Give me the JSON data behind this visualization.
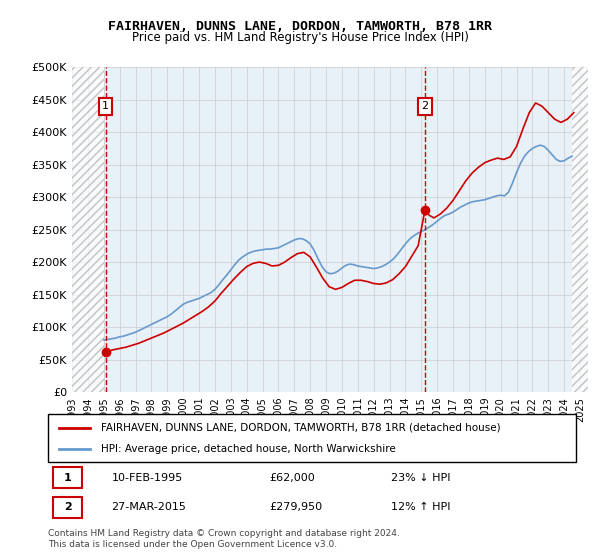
{
  "title": "FAIRHAVEN, DUNNS LANE, DORDON, TAMWORTH, B78 1RR",
  "subtitle": "Price paid vs. HM Land Registry's House Price Index (HPI)",
  "xlabel": "",
  "ylabel": "",
  "ylim": [
    0,
    500000
  ],
  "yticks": [
    0,
    50000,
    100000,
    150000,
    200000,
    250000,
    300000,
    350000,
    400000,
    450000,
    500000
  ],
  "ytick_labels": [
    "£0",
    "£50K",
    "£100K",
    "£150K",
    "£200K",
    "£250K",
    "£300K",
    "£350K",
    "£400K",
    "£450K",
    "£500K"
  ],
  "xlim_start": 1993.0,
  "xlim_end": 2025.5,
  "xtick_years": [
    1993,
    1994,
    1995,
    1996,
    1997,
    1998,
    1999,
    2000,
    2001,
    2002,
    2003,
    2004,
    2005,
    2006,
    2007,
    2008,
    2009,
    2010,
    2011,
    2012,
    2013,
    2014,
    2015,
    2016,
    2017,
    2018,
    2019,
    2020,
    2021,
    2022,
    2023,
    2024,
    2025
  ],
  "hpi_color": "#6699cc",
  "price_color": "#cc0000",
  "hatch_color": "#dddddd",
  "grid_color": "#cccccc",
  "bg_color": "#e8f0f8",
  "point1_x": 1995.11,
  "point1_y": 62000,
  "point2_x": 2015.23,
  "point2_y": 279950,
  "legend_line1": "FAIRHAVEN, DUNNS LANE, DORDON, TAMWORTH, B78 1RR (detached house)",
  "legend_line2": "HPI: Average price, detached house, North Warwickshire",
  "table_row1_num": "1",
  "table_row1_date": "10-FEB-1995",
  "table_row1_price": "£62,000",
  "table_row1_hpi": "23% ↓ HPI",
  "table_row2_num": "2",
  "table_row2_date": "27-MAR-2015",
  "table_row2_price": "£279,950",
  "table_row2_hpi": "12% ↑ HPI",
  "footnote": "Contains HM Land Registry data © Crown copyright and database right 2024.\nThis data is licensed under the Open Government Licence v3.0.",
  "hpi_data_x": [
    1995.0,
    1995.25,
    1995.5,
    1995.75,
    1996.0,
    1996.25,
    1996.5,
    1996.75,
    1997.0,
    1997.25,
    1997.5,
    1997.75,
    1998.0,
    1998.25,
    1998.5,
    1998.75,
    1999.0,
    1999.25,
    1999.5,
    1999.75,
    2000.0,
    2000.25,
    2000.5,
    2000.75,
    2001.0,
    2001.25,
    2001.5,
    2001.75,
    2002.0,
    2002.25,
    2002.5,
    2002.75,
    2003.0,
    2003.25,
    2003.5,
    2003.75,
    2004.0,
    2004.25,
    2004.5,
    2004.75,
    2005.0,
    2005.25,
    2005.5,
    2005.75,
    2006.0,
    2006.25,
    2006.5,
    2006.75,
    2007.0,
    2007.25,
    2007.5,
    2007.75,
    2008.0,
    2008.25,
    2008.5,
    2008.75,
    2009.0,
    2009.25,
    2009.5,
    2009.75,
    2010.0,
    2010.25,
    2010.5,
    2010.75,
    2011.0,
    2011.25,
    2011.5,
    2011.75,
    2012.0,
    2012.25,
    2012.5,
    2012.75,
    2013.0,
    2013.25,
    2013.5,
    2013.75,
    2014.0,
    2014.25,
    2014.5,
    2014.75,
    2015.0,
    2015.25,
    2015.5,
    2015.75,
    2016.0,
    2016.25,
    2016.5,
    2016.75,
    2017.0,
    2017.25,
    2017.5,
    2017.75,
    2018.0,
    2018.25,
    2018.5,
    2018.75,
    2019.0,
    2019.25,
    2019.5,
    2019.75,
    2020.0,
    2020.25,
    2020.5,
    2020.75,
    2021.0,
    2021.25,
    2021.5,
    2021.75,
    2022.0,
    2022.25,
    2022.5,
    2022.75,
    2023.0,
    2023.25,
    2023.5,
    2023.75,
    2024.0,
    2024.25,
    2024.5
  ],
  "hpi_data_y": [
    80000,
    81000,
    82000,
    83000,
    85000,
    86000,
    88000,
    90000,
    92000,
    95000,
    98000,
    101000,
    104000,
    107000,
    110000,
    113000,
    116000,
    120000,
    125000,
    130000,
    135000,
    138000,
    140000,
    142000,
    144000,
    147000,
    150000,
    153000,
    158000,
    165000,
    173000,
    180000,
    188000,
    196000,
    203000,
    208000,
    212000,
    215000,
    217000,
    218000,
    219000,
    220000,
    220000,
    221000,
    222000,
    225000,
    228000,
    231000,
    234000,
    236000,
    236000,
    233000,
    228000,
    218000,
    205000,
    193000,
    185000,
    182000,
    183000,
    186000,
    191000,
    195000,
    197000,
    196000,
    194000,
    193000,
    192000,
    191000,
    190000,
    191000,
    193000,
    196000,
    200000,
    205000,
    212000,
    220000,
    228000,
    235000,
    240000,
    244000,
    247000,
    250000,
    254000,
    258000,
    263000,
    268000,
    272000,
    274000,
    277000,
    281000,
    285000,
    288000,
    291000,
    293000,
    294000,
    295000,
    296000,
    298000,
    300000,
    302000,
    303000,
    302000,
    308000,
    322000,
    338000,
    352000,
    363000,
    370000,
    375000,
    378000,
    380000,
    378000,
    372000,
    365000,
    358000,
    355000,
    356000,
    360000,
    363000
  ],
  "price_data_x": [
    1995.11,
    1995.3,
    1995.6,
    1996.0,
    1996.4,
    1996.8,
    1997.2,
    1997.6,
    1998.0,
    1998.4,
    1998.8,
    1999.2,
    1999.6,
    2000.0,
    2000.4,
    2000.8,
    2001.2,
    2001.6,
    2002.0,
    2002.4,
    2002.8,
    2003.2,
    2003.6,
    2004.0,
    2004.4,
    2004.8,
    2005.2,
    2005.6,
    2006.0,
    2006.4,
    2006.8,
    2007.2,
    2007.6,
    2008.0,
    2008.4,
    2008.8,
    2009.2,
    2009.6,
    2010.0,
    2010.4,
    2010.8,
    2011.2,
    2011.6,
    2012.0,
    2012.4,
    2012.8,
    2013.2,
    2013.6,
    2014.0,
    2014.4,
    2014.8,
    2015.23,
    2015.5,
    2015.8,
    2016.2,
    2016.6,
    2017.0,
    2017.4,
    2017.8,
    2018.2,
    2018.6,
    2019.0,
    2019.4,
    2019.8,
    2020.2,
    2020.6,
    2021.0,
    2021.4,
    2021.8,
    2022.2,
    2022.6,
    2023.0,
    2023.4,
    2023.8,
    2024.2,
    2024.6
  ],
  "price_data_y": [
    62000,
    63000,
    65000,
    67000,
    69000,
    72000,
    75000,
    79000,
    83000,
    87000,
    91000,
    96000,
    101000,
    106000,
    112000,
    118000,
    124000,
    131000,
    140000,
    152000,
    163000,
    174000,
    184000,
    193000,
    198000,
    200000,
    198000,
    194000,
    195000,
    200000,
    207000,
    213000,
    215000,
    208000,
    192000,
    175000,
    162000,
    158000,
    161000,
    167000,
    172000,
    172000,
    170000,
    167000,
    166000,
    168000,
    173000,
    182000,
    193000,
    209000,
    225000,
    279950,
    272000,
    268000,
    274000,
    283000,
    295000,
    310000,
    325000,
    337000,
    346000,
    353000,
    357000,
    360000,
    358000,
    362000,
    378000,
    405000,
    430000,
    445000,
    440000,
    430000,
    420000,
    415000,
    420000,
    430000
  ]
}
